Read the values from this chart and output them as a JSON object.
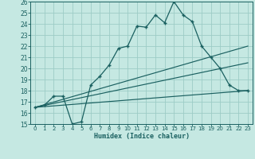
{
  "xlabel": "Humidex (Indice chaleur)",
  "xlim": [
    -0.5,
    23.5
  ],
  "ylim": [
    15,
    26
  ],
  "xticks": [
    0,
    1,
    2,
    3,
    4,
    5,
    6,
    7,
    8,
    9,
    10,
    11,
    12,
    13,
    14,
    15,
    16,
    17,
    18,
    19,
    20,
    21,
    22,
    23
  ],
  "yticks": [
    15,
    16,
    17,
    18,
    19,
    20,
    21,
    22,
    23,
    24,
    25,
    26
  ],
  "background_color": "#c5e8e2",
  "grid_color": "#9dccc6",
  "line_color": "#1a6060",
  "curve_x": [
    0,
    1,
    2,
    3,
    4,
    5,
    6,
    7,
    8,
    9,
    10,
    11,
    12,
    13,
    14,
    15,
    16,
    17,
    18,
    19,
    20,
    21,
    22,
    23
  ],
  "curve_y": [
    16.5,
    16.7,
    17.5,
    17.5,
    15.0,
    15.2,
    18.5,
    19.3,
    20.3,
    21.8,
    22.0,
    23.8,
    23.7,
    24.8,
    24.1,
    26.0,
    24.8,
    24.2,
    22.0,
    21.0,
    20.0,
    18.5,
    18.0,
    18.0
  ],
  "line2_x": [
    0,
    23
  ],
  "line2_y": [
    16.5,
    22.0
  ],
  "line3_x": [
    0,
    23
  ],
  "line3_y": [
    16.5,
    20.5
  ],
  "line4_x": [
    0,
    23
  ],
  "line4_y": [
    16.5,
    18.0
  ]
}
